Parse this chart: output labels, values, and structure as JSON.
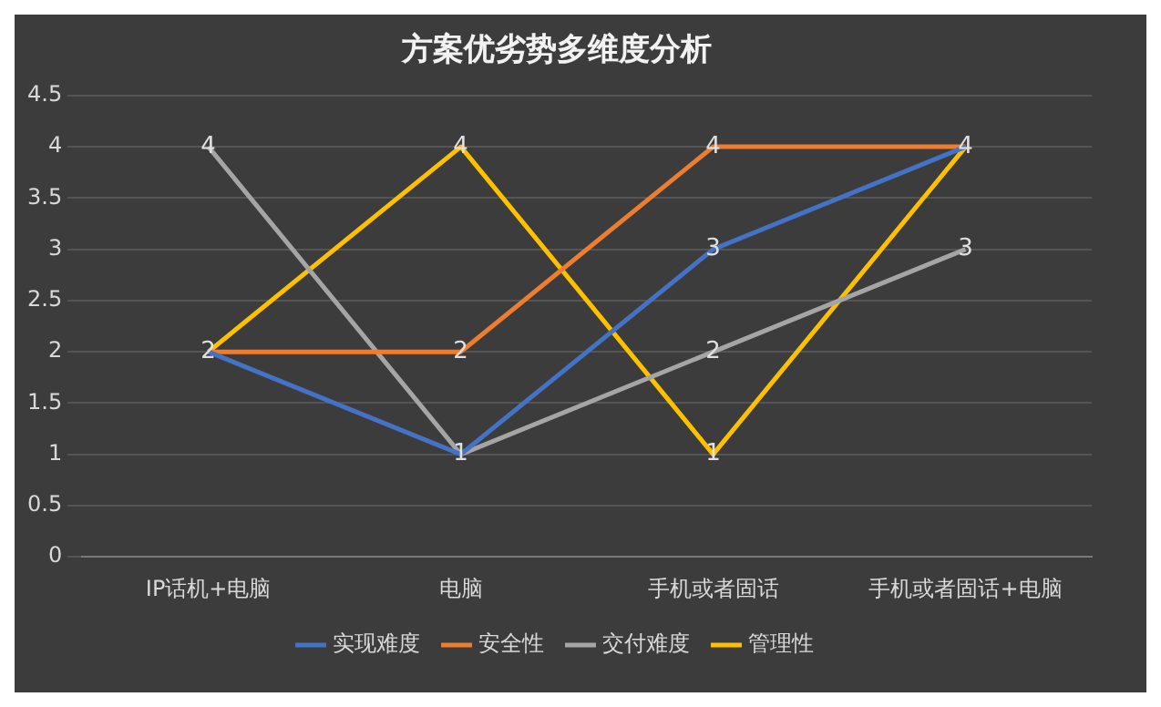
{
  "chart_data": {
    "type": "line",
    "title": "方案优劣势多维度分析",
    "categories": [
      "IP话机+电脑",
      "电脑",
      "手机或者固话",
      "手机或者固话+电脑"
    ],
    "series": [
      {
        "name": "实现难度",
        "color": "#4472c4",
        "values": [
          2,
          1,
          3,
          4
        ],
        "value_labels": [
          "2",
          "1",
          "3",
          "4"
        ]
      },
      {
        "name": "安全性",
        "color": "#ed7d31",
        "values": [
          2,
          2,
          4,
          4
        ],
        "value_labels": [
          null,
          "2",
          "4",
          null
        ]
      },
      {
        "name": "交付难度",
        "color": "#a5a5a5",
        "values": [
          4,
          1,
          2,
          3
        ],
        "value_labels": [
          "4",
          null,
          "2",
          "3"
        ]
      },
      {
        "name": "管理性",
        "color": "#ffc000",
        "values": [
          2,
          4,
          1,
          4
        ],
        "value_labels": [
          null,
          "4",
          "1",
          null
        ]
      }
    ],
    "ylim": [
      0,
      4.5
    ],
    "yticks": [
      0,
      0.5,
      1,
      1.5,
      2,
      2.5,
      3,
      3.5,
      4,
      4.5
    ],
    "grid": "y",
    "legend": "bottom",
    "marker": "none",
    "line_style": "solid"
  }
}
